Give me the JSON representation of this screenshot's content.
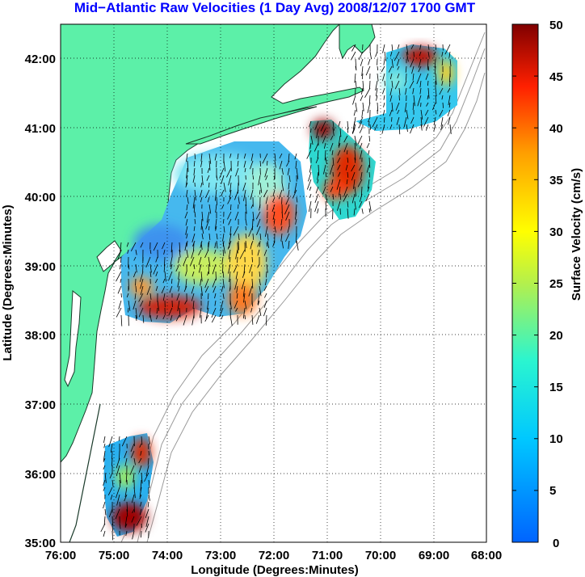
{
  "title": "Mid−Atlantic Raw Velocities (1 Day Avg) 2008/12/07 1700 GMT",
  "map": {
    "x_axis_label": "Longitude (Degrees:Minutes)",
    "y_axis_label": "Latitude (Degrees:Minutes)",
    "x_ticks": [
      "76:00",
      "75:00",
      "74:00",
      "73:00",
      "72:00",
      "71:00",
      "70:00",
      "69:00",
      "68:00"
    ],
    "y_ticks": [
      "42:00",
      "41:00",
      "40:00",
      "39:00",
      "38:00",
      "37:00",
      "36:00",
      "35:00"
    ],
    "land_color": "#5cf0a8",
    "grid": "dotted"
  },
  "colorbar": {
    "label": "Surface Velocity (cm/s)",
    "ticks": [
      "50",
      "45",
      "40",
      "35",
      "30",
      "25",
      "20",
      "15",
      "10",
      "5",
      "0"
    ],
    "min": 0,
    "max": 50,
    "colormap": "jet"
  }
}
